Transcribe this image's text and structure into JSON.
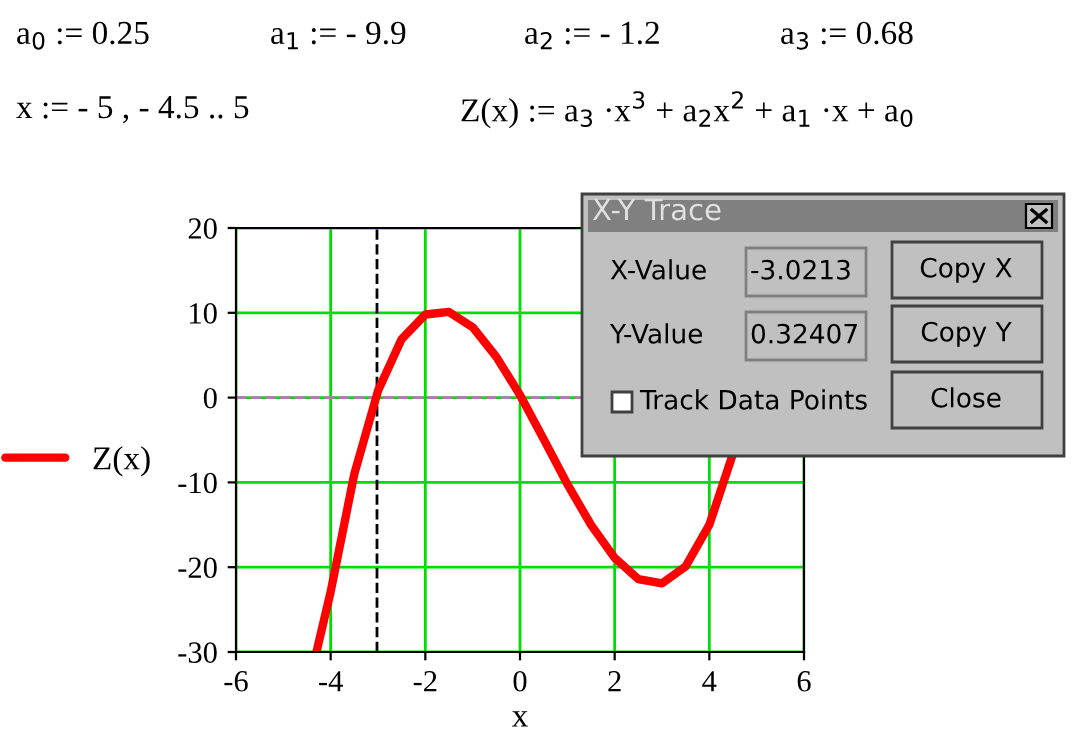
{
  "chart_data": {
    "type": "line",
    "xlabel": "x",
    "xlim": [
      -6,
      6
    ],
    "xticks": [
      -6,
      -4,
      -2,
      0,
      2,
      4,
      6
    ],
    "ylim": [
      -30,
      20
    ],
    "yticks": [
      -30,
      -20,
      -10,
      0,
      10,
      20
    ],
    "grid": true,
    "legend": "left",
    "marker": "none",
    "line_style": "solid",
    "series": [
      {
        "name": "Z(x)",
        "color": "#ff0000",
        "x": [
          -4.3,
          -4,
          -3.5,
          -3,
          -2.5,
          -2,
          -1.5,
          -1,
          -0.5,
          0,
          0.5,
          1,
          1.5,
          2,
          2.5,
          3,
          3.5,
          4,
          4.5
        ],
        "values": [
          -30,
          -22.9,
          -9,
          0.8,
          6.9,
          9.8,
          10.1,
          8.3,
          4.8,
          0.3,
          -4.9,
          -10.2,
          -15,
          -18.9,
          -21.4,
          -21.9,
          -19.9,
          -15,
          -6.6
        ]
      }
    ],
    "ref_lines": [
      {
        "axis": "x",
        "value": -3.0213,
        "color": "#000000",
        "line_style": "dashed"
      },
      {
        "axis": "y",
        "value": 0,
        "color": "#c070c0",
        "line_style": "dashed"
      }
    ],
    "annotations": [
      "a$_{0}$ := 0.25",
      "a$_{1}$ := - 9.9",
      "a$_{2}$ := - 1.2",
      "a$_{3}$ := 0.68",
      "x := - 5 , - 4.5 .. 5",
      "Z(x) := a$_{3}$ ·x$^{3}$ + a$_{2}$x$^{2}$ + a$_{1}$ ·x + a$_{0}$",
      "X-Y Trace",
      "X-Value",
      "-3.0213",
      "Y-Value",
      "0.32407",
      "Copy X",
      "Copy Y",
      "Track Data Points",
      "Close"
    ]
  }
}
